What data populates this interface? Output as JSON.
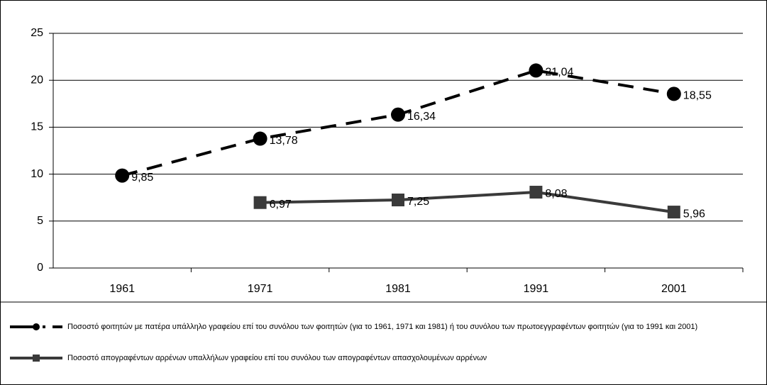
{
  "chart_data": {
    "type": "line",
    "categories": [
      "1961",
      "1971",
      "1981",
      "1991",
      "2001"
    ],
    "series": [
      {
        "name": "Ποσοστό φοιτητών με πατέρα υπάλληλο γραφείου επί του συνόλου των φοιτητών (για το 1961, 1971 και 1981) ή του συνόλου των πρωτοεγγραφέντων φοιτητών (για το 1991 και 2001)",
        "color": "#000000",
        "line_style": "dashed",
        "marker": "circle",
        "values": [
          9.85,
          13.78,
          16.34,
          21.04,
          18.55
        ],
        "value_labels": [
          "9,85",
          "13,78",
          "16,34",
          "21,04",
          "18,55"
        ]
      },
      {
        "name": "Ποσοστό απογραφέντων αρρένων υπαλλήλων γραφείου επί του συνόλου των απογραφέντων απασχολουμένων αρρένων",
        "color": "#3a3a3a",
        "line_style": "solid",
        "marker": "square",
        "values": [
          null,
          6.97,
          7.25,
          8.08,
          5.96
        ],
        "value_labels": [
          null,
          "6,97",
          "7,25",
          "8,08",
          "5,96"
        ]
      }
    ],
    "ylim": [
      0,
      25
    ],
    "yticks": [
      0,
      5,
      10,
      15,
      20,
      25
    ],
    "grid": true,
    "legend": "bottom"
  }
}
